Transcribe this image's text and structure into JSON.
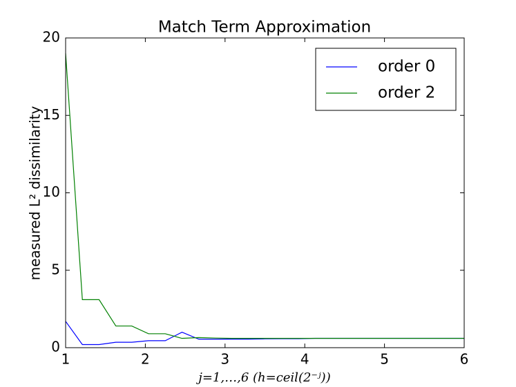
{
  "chart_data": {
    "type": "line",
    "title": "Match Term Approximation",
    "x_label": "j=1,…,6 (h=ceil(2⁻ʲ))",
    "y_label": "measured L² dissimilarity",
    "x": [
      1,
      1.21,
      1.42,
      1.63,
      1.83,
      2.04,
      2.25,
      2.46,
      2.67,
      2.88,
      3.08,
      3.29,
      3.5,
      3.71,
      3.92,
      4.13,
      4.33,
      4.54,
      4.75,
      4.96,
      5.17,
      5.38,
      5.58,
      5.79,
      6
    ],
    "series": [
      {
        "name": "order 0",
        "color": "#0000ff",
        "values": [
          1.7,
          0.2,
          0.2,
          0.35,
          0.35,
          0.45,
          0.45,
          1.0,
          0.55,
          0.55,
          0.55,
          0.55,
          0.57,
          0.58,
          0.58,
          0.6,
          0.6,
          0.6,
          0.6,
          0.6,
          0.6,
          0.6,
          0.6,
          0.6,
          0.6
        ]
      },
      {
        "name": "order 2",
        "color": "#008000",
        "values": [
          19,
          3.1,
          3.1,
          1.4,
          1.4,
          0.9,
          0.9,
          0.6,
          0.65,
          0.62,
          0.6,
          0.6,
          0.6,
          0.6,
          0.6,
          0.6,
          0.6,
          0.6,
          0.6,
          0.6,
          0.6,
          0.6,
          0.6,
          0.6,
          0.6
        ]
      }
    ],
    "xlim": [
      1,
      6
    ],
    "xticks": [
      1,
      2,
      3,
      4,
      5,
      6
    ],
    "ylim": [
      0,
      20
    ],
    "yticks": [
      0,
      5,
      10,
      15,
      20
    ],
    "legend": "upper right"
  }
}
